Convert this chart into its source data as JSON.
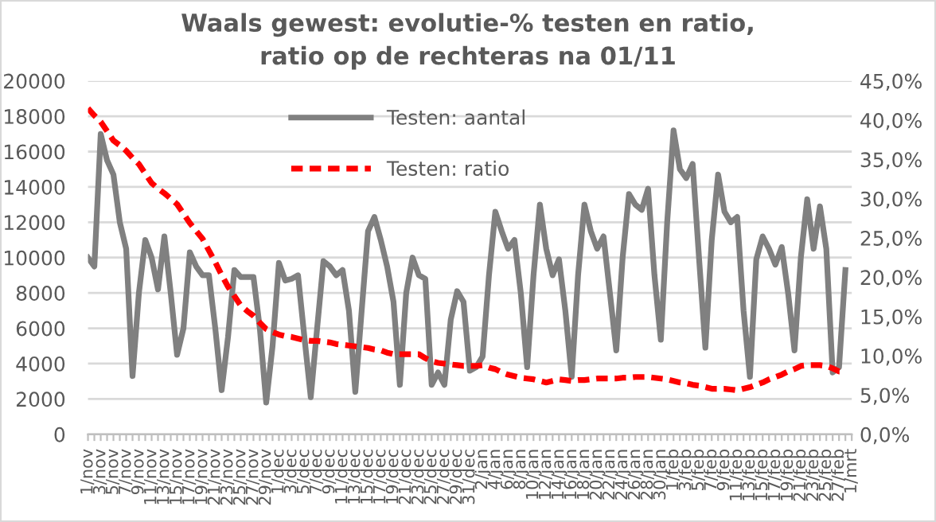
{
  "chart_data": {
    "type": "line",
    "title": "Waals gewest: evolutie-% testen en ratio,\nratio op de rechteras na 01/11",
    "categories": [
      "1/nov",
      null,
      "3/nov",
      null,
      "5/nov",
      null,
      "7/nov",
      null,
      "9/nov",
      null,
      "11/nov",
      null,
      "13/nov",
      null,
      "15/nov",
      null,
      "17/nov",
      null,
      "19/nov",
      null,
      "21/nov",
      null,
      "23/nov",
      null,
      "25/nov",
      null,
      "27/nov",
      null,
      "29/nov",
      null,
      "1/dec",
      null,
      "3/dec",
      null,
      "5/dec",
      null,
      "7/dec",
      null,
      "9/dec",
      null,
      "11/dec",
      null,
      "13/dec",
      null,
      "15/dec",
      null,
      "17/dec",
      null,
      "19/dec",
      null,
      "21/dec",
      null,
      "23/dec",
      null,
      "25/dec",
      null,
      "27/dec",
      null,
      "29/dec",
      null,
      "31/dec",
      null,
      "2/jan",
      null,
      "4/jan",
      null,
      "6/jan",
      null,
      "8/jan",
      null,
      "10/jan",
      null,
      "12/jan",
      null,
      "14/jan",
      null,
      "16/jan",
      null,
      "18/jan",
      null,
      "20/jan",
      null,
      "22/jan",
      null,
      "24/jan",
      null,
      "26/jan",
      null,
      "28/jan",
      null,
      "30/jan",
      null,
      "1/feb",
      null,
      "3/feb",
      null,
      "5/feb",
      null,
      "7/feb",
      null,
      "9/feb",
      null,
      "11/feb",
      null,
      "13/feb",
      null,
      "15/feb",
      null,
      "17/feb",
      null,
      "19/feb",
      null,
      "21/feb",
      null,
      "23/feb",
      null,
      "25/feb",
      null,
      "27/feb",
      null,
      "1/mrt"
    ],
    "series": [
      {
        "name": "Testen: aantal",
        "color": "#808080",
        "line_style": "solid",
        "values": [
          10000,
          9500,
          17000,
          15500,
          14700,
          12000,
          10500,
          3300,
          8000,
          11000,
          10000,
          8200,
          11200,
          8000,
          4500,
          6000,
          10300,
          9500,
          9000,
          9000,
          6000,
          2500,
          5500,
          9300,
          8900,
          8900,
          8900,
          6000,
          1800,
          5000,
          9700,
          8700,
          8800,
          9000,
          5500,
          2100,
          6000,
          9800,
          9500,
          9000,
          9300,
          7000,
          2400,
          7000,
          11500,
          12300,
          11000,
          9500,
          7500,
          2800,
          8000,
          10000,
          9000,
          8800,
          2800,
          3500,
          2800,
          6500,
          8100,
          7500,
          3600,
          3800,
          4400,
          9000,
          12600,
          11500,
          10500,
          11000,
          8000,
          3800,
          9000,
          13000,
          10500,
          9000,
          9900,
          7000,
          3250,
          9000,
          13000,
          11500,
          10500,
          11200,
          8000,
          4750,
          10000,
          13600,
          13000,
          12700,
          13900,
          9000,
          5350,
          12000,
          17200,
          15000,
          14500,
          15300,
          10000,
          4900,
          11000,
          14700,
          12600,
          12000,
          12300,
          7000,
          3250,
          9900,
          11200,
          10500,
          9600,
          10600,
          8000,
          4750,
          10000,
          13300,
          10500,
          12900,
          10500,
          3500,
          3800,
          9300,
          null
        ]
      },
      {
        "name": "Testen: ratio",
        "color": "#ff0000",
        "line_style": "dashed",
        "axis": "y2",
        "values": [
          41.5,
          40.6,
          39.8,
          38.6,
          37.4,
          36.8,
          36.1,
          35.2,
          34.4,
          33.2,
          32.0,
          31.3,
          30.7,
          30.0,
          29.3,
          28.1,
          26.9,
          25.9,
          24.9,
          23.4,
          21.9,
          20.3,
          18.8,
          17.6,
          16.4,
          15.7,
          15.1,
          14.2,
          13.4,
          13.0,
          12.7,
          12.5,
          12.4,
          12.2,
          12.0,
          11.9,
          11.9,
          11.8,
          11.7,
          11.5,
          11.4,
          11.3,
          11.2,
          11.1,
          11.0,
          10.8,
          10.7,
          10.4,
          10.2,
          10.2,
          10.2,
          10.2,
          10.2,
          9.7,
          9.3,
          9.1,
          9.0,
          8.9,
          8.8,
          8.7,
          8.7,
          8.7,
          8.8,
          8.5,
          8.3,
          7.9,
          7.6,
          7.4,
          7.2,
          7.1,
          7.0,
          6.8,
          6.6,
          6.8,
          7.0,
          6.9,
          6.8,
          6.9,
          6.9,
          7.0,
          7.1,
          7.1,
          7.1,
          7.1,
          7.2,
          7.2,
          7.3,
          7.3,
          7.3,
          7.2,
          7.1,
          7.0,
          6.8,
          6.6,
          6.5,
          6.3,
          6.2,
          6.0,
          5.8,
          5.8,
          5.8,
          5.7,
          5.6,
          5.8,
          6.0,
          6.3,
          6.6,
          7.0,
          7.3,
          7.6,
          8.0,
          8.3,
          8.7,
          8.8,
          8.8,
          8.8,
          8.7,
          8.4,
          8.0,
          8.0,
          null
        ]
      }
    ],
    "ylim": [
      0,
      20000
    ],
    "yticks": [
      0,
      2000,
      4000,
      6000,
      8000,
      10000,
      12000,
      14000,
      16000,
      18000,
      20000
    ],
    "y2lim": [
      0,
      45
    ],
    "y2ticks": [
      {
        "value": 0,
        "label": "0,0%"
      },
      {
        "value": 5,
        "label": "5,0%"
      },
      {
        "value": 10,
        "label": "10,0%"
      },
      {
        "value": 15,
        "label": "15,0%"
      },
      {
        "value": 20,
        "label": "20,0%"
      },
      {
        "value": 25,
        "label": "25,0%"
      },
      {
        "value": 30,
        "label": "30,0%"
      },
      {
        "value": 35,
        "label": "35,0%"
      },
      {
        "value": 40,
        "label": "40,0%"
      },
      {
        "value": 45,
        "label": "45,0%"
      }
    ],
    "grid": "y",
    "legend": "top",
    "marker": "none"
  }
}
